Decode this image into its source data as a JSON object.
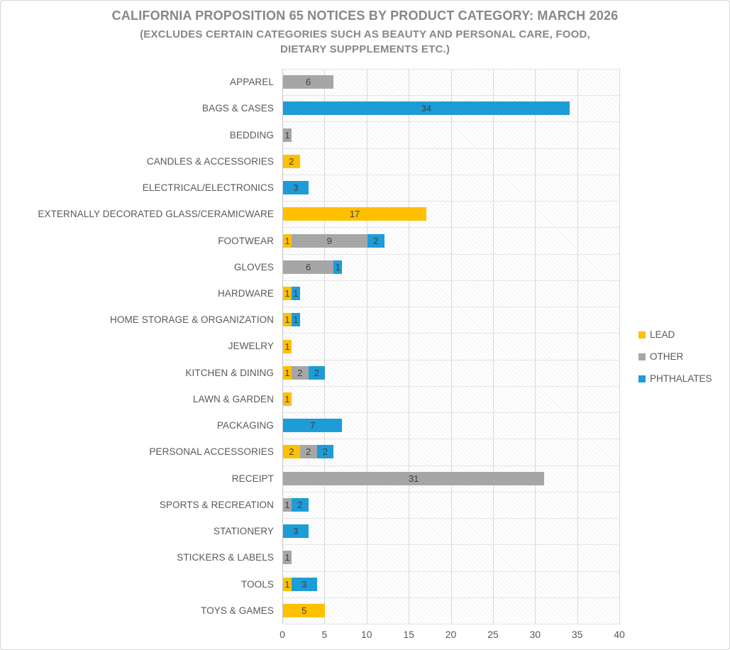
{
  "title": "CALIFORNIA PROPOSITION 65 NOTICES BY PRODUCT CATEGORY: MARCH 2026",
  "subtitle": "(EXCLUDES CERTAIN CATEGORIES SUCH AS BEAUTY AND PERSONAL CARE, FOOD, DIETARY SUPPPLEMENTS ETC.)",
  "colors": {
    "lead": "#FFC000",
    "other": "#A6A6A6",
    "phthalates": "#1E9CD7",
    "bar_value_text": "#404040",
    "axis_text": "#595959",
    "title_text": "#878787",
    "gridline_vertical": "#D9D9D9",
    "gridline_horizontal": "#E4E4E4"
  },
  "legend": {
    "position": "right",
    "items": [
      {
        "label": "LEAD",
        "color": "#FFC000"
      },
      {
        "label": "OTHER",
        "color": "#A6A6A6"
      },
      {
        "label": "PHTHALATES",
        "color": "#1E9CD7"
      }
    ]
  },
  "x_axis": {
    "tick_labels": [
      "0",
      "5",
      "10",
      "15",
      "20",
      "25",
      "30",
      "35",
      "40"
    ]
  },
  "chart_data": {
    "type": "bar",
    "orientation": "horizontal",
    "stacked": true,
    "title": "CALIFORNIA PROPOSITION 65 NOTICES BY PRODUCT CATEGORY: MARCH 2026",
    "subtitle": "(EXCLUDES CERTAIN CATEGORIES SUCH AS BEAUTY AND PERSONAL CARE, FOOD, DIETARY SUPPPLEMENTS ETC.)",
    "categories": [
      "APPAREL",
      "BAGS & CASES",
      "BEDDING",
      "CANDLES & ACCESSORIES",
      "ELECTRICAL/ELECTRONICS",
      "EXTERNALLY DECORATED GLASS/CERAMICWARE",
      "FOOTWEAR",
      "GLOVES",
      "HARDWARE",
      "HOME STORAGE & ORGANIZATION",
      "JEWELRY",
      "KITCHEN & DINING",
      "LAWN & GARDEN",
      "PACKAGING",
      "PERSONAL ACCESSORIES",
      "RECEIPT",
      "SPORTS & RECREATION",
      "STATIONERY",
      "STICKERS & LABELS",
      "TOOLS",
      "TOYS & GAMES"
    ],
    "series": [
      {
        "name": "LEAD",
        "color": "#FFC000",
        "values": [
          0,
          0,
          0,
          2,
          0,
          17,
          1,
          0,
          1,
          1,
          1,
          1,
          1,
          0,
          2,
          0,
          0,
          0,
          0,
          1,
          5
        ]
      },
      {
        "name": "OTHER",
        "color": "#A6A6A6",
        "values": [
          6,
          0,
          1,
          0,
          0,
          0,
          9,
          6,
          0,
          0,
          0,
          2,
          0,
          0,
          2,
          31,
          1,
          0,
          1,
          0,
          0
        ]
      },
      {
        "name": "PHTHALATES",
        "color": "#1E9CD7",
        "values": [
          0,
          34,
          0,
          0,
          3,
          0,
          2,
          1,
          1,
          1,
          0,
          2,
          0,
          7,
          2,
          0,
          2,
          3,
          0,
          3,
          0
        ]
      }
    ],
    "xlim": [
      0,
      40
    ],
    "x_ticks": [
      0,
      5,
      10,
      15,
      20,
      25,
      30,
      35,
      40
    ],
    "grid": true,
    "data_labels": true,
    "legend_position": "right"
  }
}
